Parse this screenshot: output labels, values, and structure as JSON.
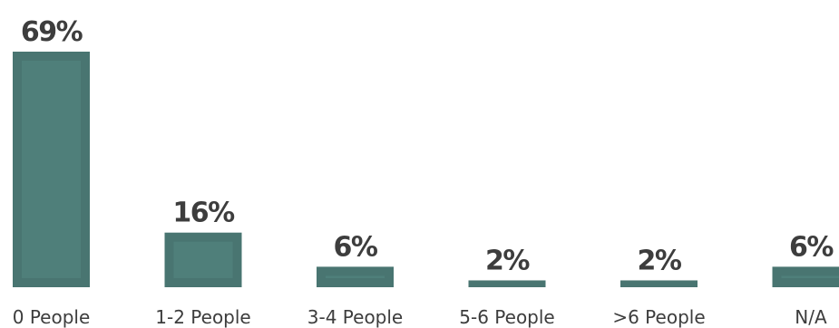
{
  "chart_data": {
    "type": "bar",
    "categories": [
      "0 People",
      "1-2 People",
      "3-4 People",
      "5-6 People",
      ">6 People",
      "N/A"
    ],
    "values": [
      69,
      16,
      6,
      2,
      2,
      6
    ],
    "value_labels": [
      "69%",
      "16%",
      "6%",
      "2%",
      "2%",
      "6%"
    ],
    "title": "",
    "xlabel": "",
    "ylabel": "",
    "ylim": [
      0,
      69
    ],
    "grid": false,
    "legend": "none"
  },
  "colors": {
    "bar_fill": "#497571",
    "bar_inner": "#4f7f7a",
    "value_text": "#3d3d3d",
    "category_text": "#3d3d3d"
  }
}
